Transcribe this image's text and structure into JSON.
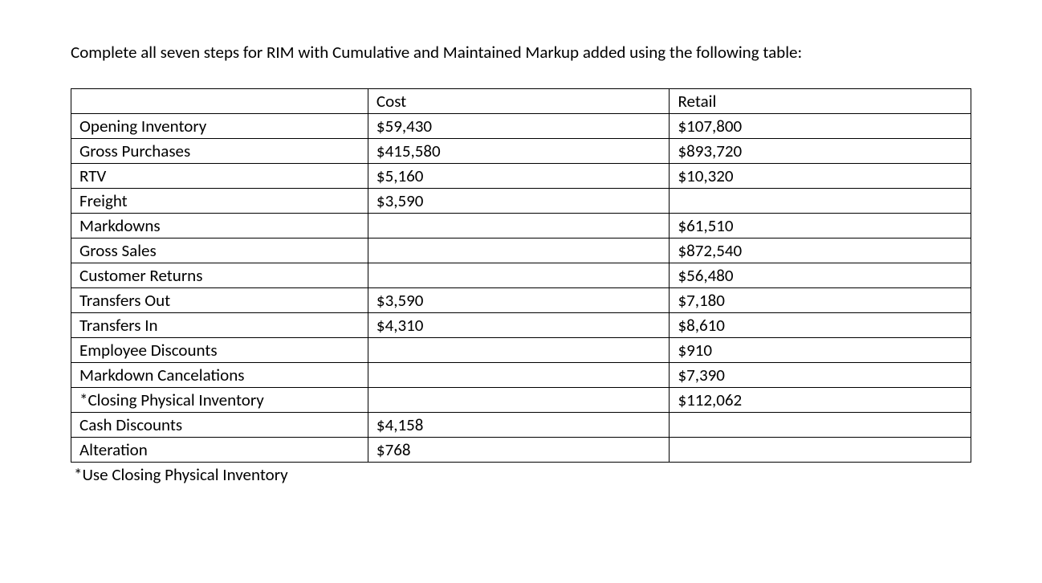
{
  "instruction": "Complete all seven steps for RIM with Cumulative and Maintained Markup added using the following table:",
  "table": {
    "headers": {
      "label": "",
      "cost": "Cost",
      "retail": "Retail"
    },
    "rows": [
      {
        "label": "Opening Inventory",
        "cost": "$59,430",
        "retail": "$107,800"
      },
      {
        "label": "Gross Purchases",
        "cost": "$415,580",
        "retail": "$893,720"
      },
      {
        "label": "RTV",
        "cost": "$5,160",
        "retail": "$10,320"
      },
      {
        "label": "Freight",
        "cost": "$3,590",
        "retail": ""
      },
      {
        "label": "Markdowns",
        "cost": "",
        "retail": "$61,510"
      },
      {
        "label": "Gross Sales",
        "cost": "",
        "retail": "$872,540"
      },
      {
        "label": "Customer Returns",
        "cost": "",
        "retail": "$56,480"
      },
      {
        "label": "Transfers Out",
        "cost": "$3,590",
        "retail": "$7,180"
      },
      {
        "label": "Transfers In",
        "cost": "$4,310",
        "retail": "$8,610"
      },
      {
        "label": "Employee Discounts",
        "cost": "",
        "retail": "$910"
      },
      {
        "label": "Markdown Cancelations",
        "cost": "",
        "retail": "$7,390"
      },
      {
        "label": "*Closing Physical Inventory",
        "cost": "",
        "retail": "$112,062"
      },
      {
        "label": "Cash Discounts",
        "cost": "$4,158",
        "retail": ""
      },
      {
        "label": "Alteration",
        "cost": "$768",
        "retail": ""
      }
    ]
  },
  "footnote": "*Use Closing Physical Inventory"
}
